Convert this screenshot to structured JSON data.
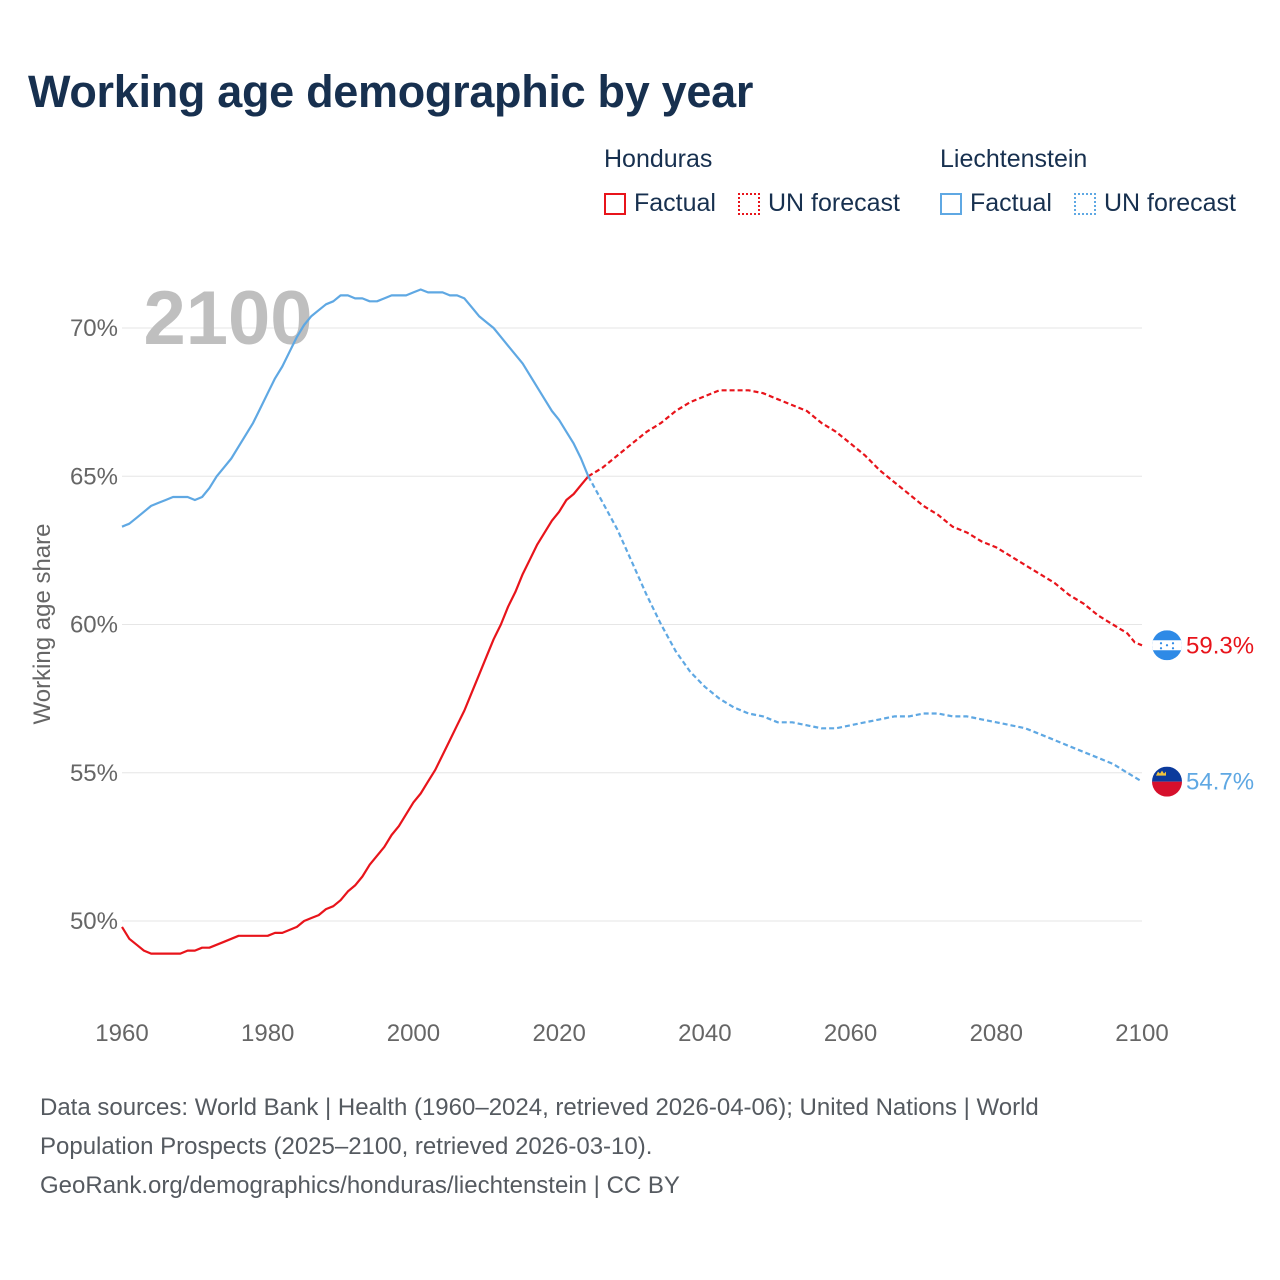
{
  "header": {
    "title": "Working age demographic by year"
  },
  "legend": {
    "groups": [
      {
        "name": "Honduras",
        "factual": "Factual",
        "forecast": "UN forecast",
        "color": "#e8141b"
      },
      {
        "name": "Liechtenstein",
        "factual": "Factual",
        "forecast": "UN forecast",
        "color": "#5fa8e3"
      }
    ]
  },
  "footer": {
    "line1": "Data sources: World Bank | Health (1960–2024, retrieved 2026-04-06); United Nations | World",
    "line2": "Population Prospects (2025–2100, retrieved 2026-03-10).",
    "line3": "GeoRank.org/demographics/honduras/liechtenstein | CC BY"
  },
  "chart_data": {
    "type": "line",
    "year_label": "2100",
    "ylabel": "Working age share",
    "xlim": [
      1960,
      2100
    ],
    "ylim": [
      47.5,
      72.5
    ],
    "x_ticks": [
      1960,
      1980,
      2000,
      2020,
      2040,
      2060,
      2080,
      2100
    ],
    "x_tick_labels": [
      "1960",
      "1980",
      "2000",
      "2020",
      "2040",
      "2060",
      "2080",
      "2100"
    ],
    "y_ticks": [
      50,
      55,
      60,
      65,
      70
    ],
    "y_tick_labels": [
      "50%",
      "55%",
      "60%",
      "65%",
      "70%"
    ],
    "factual_end_year": 2024,
    "series": [
      {
        "name": "Honduras",
        "color": "#e8141b",
        "end_label": "59.3%",
        "points": [
          [
            1960,
            49.8
          ],
          [
            1961,
            49.4
          ],
          [
            1962,
            49.2
          ],
          [
            1963,
            49.0
          ],
          [
            1964,
            48.9
          ],
          [
            1966,
            48.9
          ],
          [
            1968,
            48.9
          ],
          [
            1969,
            49.0
          ],
          [
            1970,
            49.0
          ],
          [
            1971,
            49.1
          ],
          [
            1972,
            49.1
          ],
          [
            1974,
            49.3
          ],
          [
            1976,
            49.5
          ],
          [
            1978,
            49.5
          ],
          [
            1980,
            49.5
          ],
          [
            1981,
            49.6
          ],
          [
            1982,
            49.6
          ],
          [
            1983,
            49.7
          ],
          [
            1984,
            49.8
          ],
          [
            1985,
            50.0
          ],
          [
            1986,
            50.1
          ],
          [
            1987,
            50.2
          ],
          [
            1988,
            50.4
          ],
          [
            1989,
            50.5
          ],
          [
            1990,
            50.7
          ],
          [
            1991,
            51.0
          ],
          [
            1992,
            51.2
          ],
          [
            1993,
            51.5
          ],
          [
            1994,
            51.9
          ],
          [
            1995,
            52.2
          ],
          [
            1996,
            52.5
          ],
          [
            1997,
            52.9
          ],
          [
            1998,
            53.2
          ],
          [
            1999,
            53.6
          ],
          [
            2000,
            54.0
          ],
          [
            2001,
            54.3
          ],
          [
            2002,
            54.7
          ],
          [
            2003,
            55.1
          ],
          [
            2004,
            55.6
          ],
          [
            2005,
            56.1
          ],
          [
            2006,
            56.6
          ],
          [
            2007,
            57.1
          ],
          [
            2008,
            57.7
          ],
          [
            2009,
            58.3
          ],
          [
            2010,
            58.9
          ],
          [
            2011,
            59.5
          ],
          [
            2012,
            60.0
          ],
          [
            2013,
            60.6
          ],
          [
            2014,
            61.1
          ],
          [
            2015,
            61.7
          ],
          [
            2016,
            62.2
          ],
          [
            2017,
            62.7
          ],
          [
            2018,
            63.1
          ],
          [
            2019,
            63.5
          ],
          [
            2020,
            63.8
          ],
          [
            2021,
            64.2
          ],
          [
            2022,
            64.4
          ],
          [
            2023,
            64.7
          ],
          [
            2024,
            65.0
          ],
          [
            2026,
            65.3
          ],
          [
            2028,
            65.7
          ],
          [
            2030,
            66.1
          ],
          [
            2032,
            66.5
          ],
          [
            2034,
            66.8
          ],
          [
            2036,
            67.2
          ],
          [
            2038,
            67.5
          ],
          [
            2040,
            67.7
          ],
          [
            2042,
            67.9
          ],
          [
            2044,
            67.9
          ],
          [
            2046,
            67.9
          ],
          [
            2048,
            67.8
          ],
          [
            2050,
            67.6
          ],
          [
            2052,
            67.4
          ],
          [
            2054,
            67.2
          ],
          [
            2056,
            66.8
          ],
          [
            2058,
            66.5
          ],
          [
            2060,
            66.1
          ],
          [
            2062,
            65.7
          ],
          [
            2064,
            65.2
          ],
          [
            2066,
            64.8
          ],
          [
            2068,
            64.4
          ],
          [
            2070,
            64.0
          ],
          [
            2072,
            63.7
          ],
          [
            2074,
            63.3
          ],
          [
            2076,
            63.1
          ],
          [
            2078,
            62.8
          ],
          [
            2080,
            62.6
          ],
          [
            2082,
            62.3
          ],
          [
            2084,
            62.0
          ],
          [
            2086,
            61.7
          ],
          [
            2088,
            61.4
          ],
          [
            2090,
            61.0
          ],
          [
            2092,
            60.7
          ],
          [
            2094,
            60.3
          ],
          [
            2096,
            60.0
          ],
          [
            2098,
            59.7
          ],
          [
            2099,
            59.4
          ],
          [
            2100,
            59.3
          ]
        ]
      },
      {
        "name": "Liechtenstein",
        "color": "#5fa8e3",
        "end_label": "54.7%",
        "points": [
          [
            1960,
            63.3
          ],
          [
            1961,
            63.4
          ],
          [
            1962,
            63.6
          ],
          [
            1963,
            63.8
          ],
          [
            1964,
            64.0
          ],
          [
            1965,
            64.1
          ],
          [
            1966,
            64.2
          ],
          [
            1967,
            64.3
          ],
          [
            1968,
            64.3
          ],
          [
            1969,
            64.3
          ],
          [
            1970,
            64.2
          ],
          [
            1971,
            64.3
          ],
          [
            1972,
            64.6
          ],
          [
            1973,
            65.0
          ],
          [
            1974,
            65.3
          ],
          [
            1975,
            65.6
          ],
          [
            1976,
            66.0
          ],
          [
            1977,
            66.4
          ],
          [
            1978,
            66.8
          ],
          [
            1979,
            67.3
          ],
          [
            1980,
            67.8
          ],
          [
            1981,
            68.3
          ],
          [
            1982,
            68.7
          ],
          [
            1983,
            69.2
          ],
          [
            1984,
            69.7
          ],
          [
            1985,
            70.1
          ],
          [
            1986,
            70.4
          ],
          [
            1987,
            70.6
          ],
          [
            1988,
            70.8
          ],
          [
            1989,
            70.9
          ],
          [
            1990,
            71.1
          ],
          [
            1991,
            71.1
          ],
          [
            1992,
            71.0
          ],
          [
            1993,
            71.0
          ],
          [
            1994,
            70.9
          ],
          [
            1995,
            70.9
          ],
          [
            1996,
            71.0
          ],
          [
            1997,
            71.1
          ],
          [
            1998,
            71.1
          ],
          [
            1999,
            71.1
          ],
          [
            2000,
            71.2
          ],
          [
            2001,
            71.3
          ],
          [
            2002,
            71.2
          ],
          [
            2003,
            71.2
          ],
          [
            2004,
            71.2
          ],
          [
            2005,
            71.1
          ],
          [
            2006,
            71.1
          ],
          [
            2007,
            71.0
          ],
          [
            2008,
            70.7
          ],
          [
            2009,
            70.4
          ],
          [
            2010,
            70.2
          ],
          [
            2011,
            70.0
          ],
          [
            2012,
            69.7
          ],
          [
            2013,
            69.4
          ],
          [
            2014,
            69.1
          ],
          [
            2015,
            68.8
          ],
          [
            2016,
            68.4
          ],
          [
            2017,
            68.0
          ],
          [
            2018,
            67.6
          ],
          [
            2019,
            67.2
          ],
          [
            2020,
            66.9
          ],
          [
            2021,
            66.5
          ],
          [
            2022,
            66.1
          ],
          [
            2023,
            65.6
          ],
          [
            2024,
            65.0
          ],
          [
            2026,
            64.1
          ],
          [
            2028,
            63.2
          ],
          [
            2030,
            62.1
          ],
          [
            2032,
            61.0
          ],
          [
            2034,
            60.0
          ],
          [
            2036,
            59.1
          ],
          [
            2038,
            58.4
          ],
          [
            2040,
            57.9
          ],
          [
            2042,
            57.5
          ],
          [
            2044,
            57.2
          ],
          [
            2046,
            57.0
          ],
          [
            2048,
            56.9
          ],
          [
            2050,
            56.7
          ],
          [
            2052,
            56.7
          ],
          [
            2054,
            56.6
          ],
          [
            2056,
            56.5
          ],
          [
            2058,
            56.5
          ],
          [
            2060,
            56.6
          ],
          [
            2062,
            56.7
          ],
          [
            2064,
            56.8
          ],
          [
            2066,
            56.9
          ],
          [
            2068,
            56.9
          ],
          [
            2070,
            57.0
          ],
          [
            2072,
            57.0
          ],
          [
            2074,
            56.9
          ],
          [
            2076,
            56.9
          ],
          [
            2078,
            56.8
          ],
          [
            2080,
            56.7
          ],
          [
            2082,
            56.6
          ],
          [
            2084,
            56.5
          ],
          [
            2086,
            56.3
          ],
          [
            2088,
            56.1
          ],
          [
            2090,
            55.9
          ],
          [
            2092,
            55.7
          ],
          [
            2094,
            55.5
          ],
          [
            2096,
            55.3
          ],
          [
            2098,
            55.0
          ],
          [
            2100,
            54.7
          ]
        ]
      }
    ]
  }
}
